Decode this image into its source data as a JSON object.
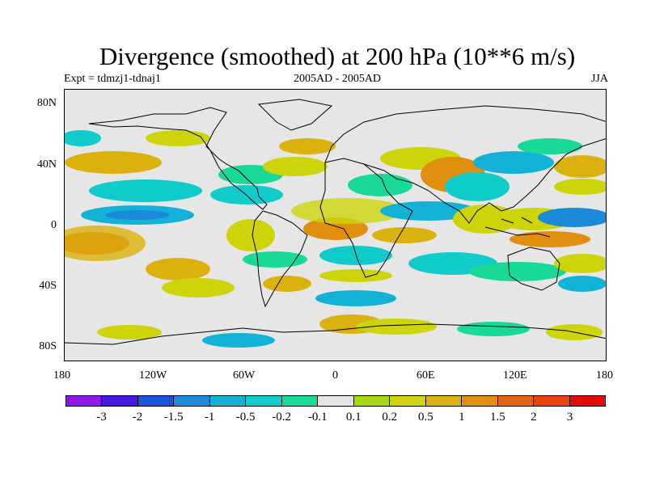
{
  "title": "Divergence (smoothed) at 200 hPa (10**6 m/s)",
  "experiment": "Expt = tdmzj1-tdnaj1",
  "period": "2005AD - 2005AD",
  "season": "JJA",
  "map": {
    "projection": "cylindrical equidistant",
    "background_color": "#e6e6e6",
    "lat_labels": [
      "80N",
      "40N",
      "0",
      "40S",
      "80S"
    ],
    "lon_labels": [
      "180",
      "120W",
      "60W",
      "0",
      "60E",
      "120E",
      "180"
    ]
  },
  "colorbar": {
    "colors": [
      "#8f18e8",
      "#4b19e0",
      "#1c52dc",
      "#1b8bd9",
      "#11b2d6",
      "#0fcbc9",
      "#19d996",
      "#e6e6e6",
      "#a5d90b",
      "#cdd40a",
      "#dbb20d",
      "#e08f0f",
      "#e3650f",
      "#e3420d",
      "#e60b0b"
    ],
    "labels": [
      "-3",
      "-2",
      "-1.5",
      "-1",
      "-0.5",
      "-0.2",
      "-0.1",
      "0.1",
      "0.2",
      "0.5",
      "1",
      "1.5",
      "2",
      "3"
    ]
  }
}
